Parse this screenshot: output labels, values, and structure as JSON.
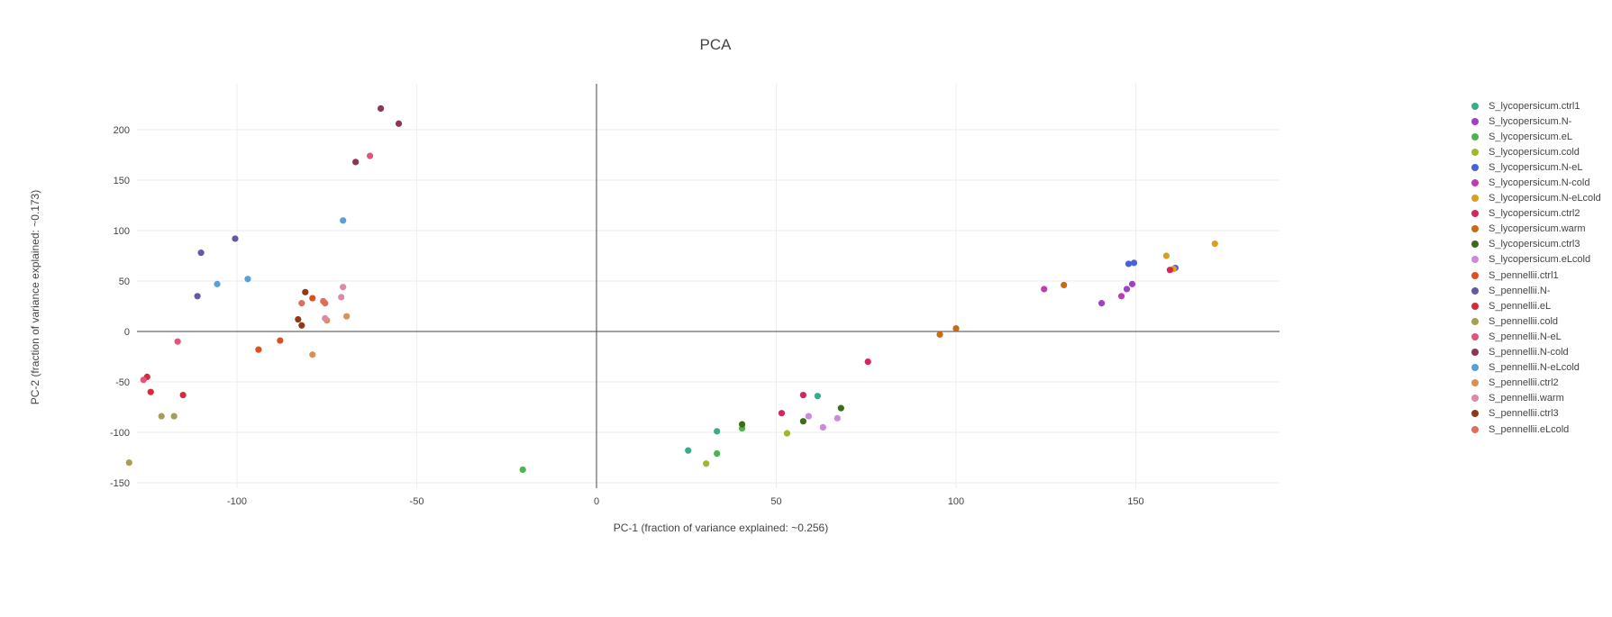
{
  "chart_data": {
    "type": "scatter",
    "title": "PCA",
    "xlabel": "PC-1 (fraction of variance explained: ~0.256)",
    "ylabel": "PC-2 (fraction of variance explained: ~0.173)",
    "xlim": [
      -150,
      190
    ],
    "ylim": [
      -160,
      245
    ],
    "x_ticks": [
      -100,
      -50,
      0,
      50,
      100,
      150
    ],
    "y_ticks": [
      -150,
      -100,
      -50,
      0,
      50,
      100,
      150,
      200
    ],
    "grid": true,
    "legend_position": "right",
    "series": [
      {
        "name": "S_lycopersicum.ctrl1",
        "color": "#3aaa8c",
        "points": [
          [
            25.5,
            -118
          ],
          [
            33.5,
            -99
          ],
          [
            61.5,
            -64
          ]
        ]
      },
      {
        "name": "S_lycopersicum.N-",
        "color": "#a040c8",
        "points": [
          [
            140.5,
            28
          ],
          [
            147.5,
            42
          ],
          [
            149,
            47
          ]
        ]
      },
      {
        "name": "S_lycopersicum.eL",
        "color": "#4eb54e",
        "points": [
          [
            -20.5,
            -137
          ],
          [
            33.5,
            -121
          ],
          [
            40.5,
            -96
          ]
        ]
      },
      {
        "name": "S_lycopersicum.cold",
        "color": "#9db82a",
        "points": [
          [
            30.5,
            -131
          ],
          [
            53,
            -101
          ]
        ]
      },
      {
        "name": "S_lycopersicum.N-eL",
        "color": "#4a62d8",
        "points": [
          [
            148,
            67
          ],
          [
            149.5,
            68
          ],
          [
            161,
            63
          ]
        ]
      },
      {
        "name": "S_lycopersicum.N-cold",
        "color": "#c23bb5",
        "points": [
          [
            124.5,
            42
          ],
          [
            146,
            35
          ]
        ]
      },
      {
        "name": "S_lycopersicum.N-eLcold",
        "color": "#d9a020",
        "points": [
          [
            158.5,
            75
          ],
          [
            172,
            87
          ],
          [
            160.5,
            62
          ]
        ]
      },
      {
        "name": "S_lycopersicum.ctrl2",
        "color": "#d8245a",
        "points": [
          [
            51.5,
            -81
          ],
          [
            57.5,
            -63
          ],
          [
            75.5,
            -30
          ],
          [
            159.5,
            61
          ]
        ]
      },
      {
        "name": "S_lycopersicum.warm",
        "color": "#cc6a12",
        "points": [
          [
            95.5,
            -3
          ],
          [
            100,
            3
          ],
          [
            130,
            46
          ]
        ]
      },
      {
        "name": "S_lycopersicum.ctrl3",
        "color": "#3e6b1a",
        "points": [
          [
            40.5,
            -92
          ],
          [
            57.5,
            -89
          ],
          [
            68,
            -76
          ]
        ]
      },
      {
        "name": "S_lycopersicum.eLcold",
        "color": "#c98ae0",
        "points": [
          [
            59,
            -84
          ],
          [
            63,
            -95
          ],
          [
            67,
            -86
          ]
        ]
      },
      {
        "name": "S_pennellii.ctrl1",
        "color": "#de4e1e",
        "points": [
          [
            -94,
            -18
          ],
          [
            -88,
            -9
          ],
          [
            -79,
            33
          ]
        ]
      },
      {
        "name": "S_pennellii.N-",
        "color": "#6659a3",
        "points": [
          [
            -111,
            35
          ],
          [
            -110,
            78
          ],
          [
            -100.5,
            92
          ]
        ]
      },
      {
        "name": "S_pennellii.eL",
        "color": "#d42b3a",
        "points": [
          [
            -125,
            -45
          ],
          [
            -124,
            -60
          ],
          [
            -115,
            -63
          ]
        ]
      },
      {
        "name": "S_pennellii.cold",
        "color": "#a69e57",
        "points": [
          [
            -130,
            -130
          ],
          [
            -121,
            -84
          ],
          [
            -117.5,
            -84
          ]
        ]
      },
      {
        "name": "S_pennellii.N-eL",
        "color": "#e0557a",
        "points": [
          [
            -126,
            -48
          ],
          [
            -116.5,
            -10
          ],
          [
            -63,
            174
          ]
        ]
      },
      {
        "name": "S_pennellii.N-cold",
        "color": "#8e3550",
        "points": [
          [
            -60,
            221
          ],
          [
            -55,
            206
          ],
          [
            -67,
            168
          ]
        ]
      },
      {
        "name": "S_pennellii.N-eLcold",
        "color": "#57a0d8",
        "points": [
          [
            -70.5,
            110
          ],
          [
            -97,
            52
          ],
          [
            -105.5,
            47
          ]
        ]
      },
      {
        "name": "S_pennellii.ctrl2",
        "color": "#da9055",
        "points": [
          [
            -79,
            -23
          ],
          [
            -75,
            11
          ],
          [
            -69.5,
            15
          ]
        ]
      },
      {
        "name": "S_pennellii.warm",
        "color": "#de88aa",
        "points": [
          [
            -70.5,
            44
          ],
          [
            -71,
            34
          ],
          [
            -75.5,
            13
          ]
        ]
      },
      {
        "name": "S_pennellii.ctrl3",
        "color": "#8e3a16",
        "points": [
          [
            -81,
            39
          ],
          [
            -83,
            12
          ],
          [
            -82,
            6
          ]
        ]
      },
      {
        "name": "S_pennellii.eLcold",
        "color": "#dd6e5e",
        "points": [
          [
            -82,
            28
          ],
          [
            -76,
            30
          ],
          [
            -75.5,
            28
          ]
        ]
      }
    ]
  }
}
